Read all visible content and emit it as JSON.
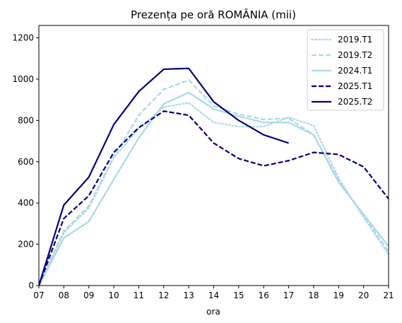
{
  "chart_data": {
    "type": "line",
    "title": "Prezența pe oră ROMÂNIA (mii)",
    "xlabel": "ora",
    "ylabel": "",
    "categories": [
      "07",
      "08",
      "09",
      "10",
      "11",
      "12",
      "13",
      "14",
      "15",
      "16",
      "17",
      "18",
      "19",
      "20",
      "21"
    ],
    "xlim": [
      0,
      14
    ],
    "ylim": [
      0,
      1260
    ],
    "yticks": [
      0,
      200,
      400,
      600,
      800,
      1000,
      1200
    ],
    "grid": false,
    "legend_position": "top-right",
    "series": [
      {
        "name": "2019.T1",
        "color": "#add8e6",
        "style": "dotted",
        "values": [
          0,
          255,
          375,
          620,
          760,
          865,
          885,
          790,
          770,
          770,
          815,
          775,
          520,
          330,
          150
        ]
      },
      {
        "name": "2019.T2",
        "color": "#add8e6",
        "style": "dashed",
        "values": [
          0,
          265,
          385,
          625,
          825,
          950,
          995,
          870,
          830,
          805,
          810,
          730,
          510,
          340,
          165
        ]
      },
      {
        "name": "2024.T1",
        "color": "#add8e6",
        "style": "solid",
        "values": [
          0,
          230,
          310,
          515,
          715,
          880,
          935,
          855,
          820,
          790,
          790,
          730,
          500,
          345,
          190
        ]
      },
      {
        "name": "2025.T1",
        "color": "#00007f",
        "style": "dashed",
        "values": [
          0,
          325,
          435,
          645,
          765,
          845,
          825,
          690,
          615,
          580,
          605,
          645,
          635,
          575,
          420
        ]
      },
      {
        "name": "2025.T2",
        "color": "#00007f",
        "style": "solid",
        "values": [
          0,
          390,
          525,
          780,
          940,
          1048,
          1052,
          890,
          800,
          730,
          690,
          null,
          null,
          null,
          null
        ]
      }
    ]
  }
}
